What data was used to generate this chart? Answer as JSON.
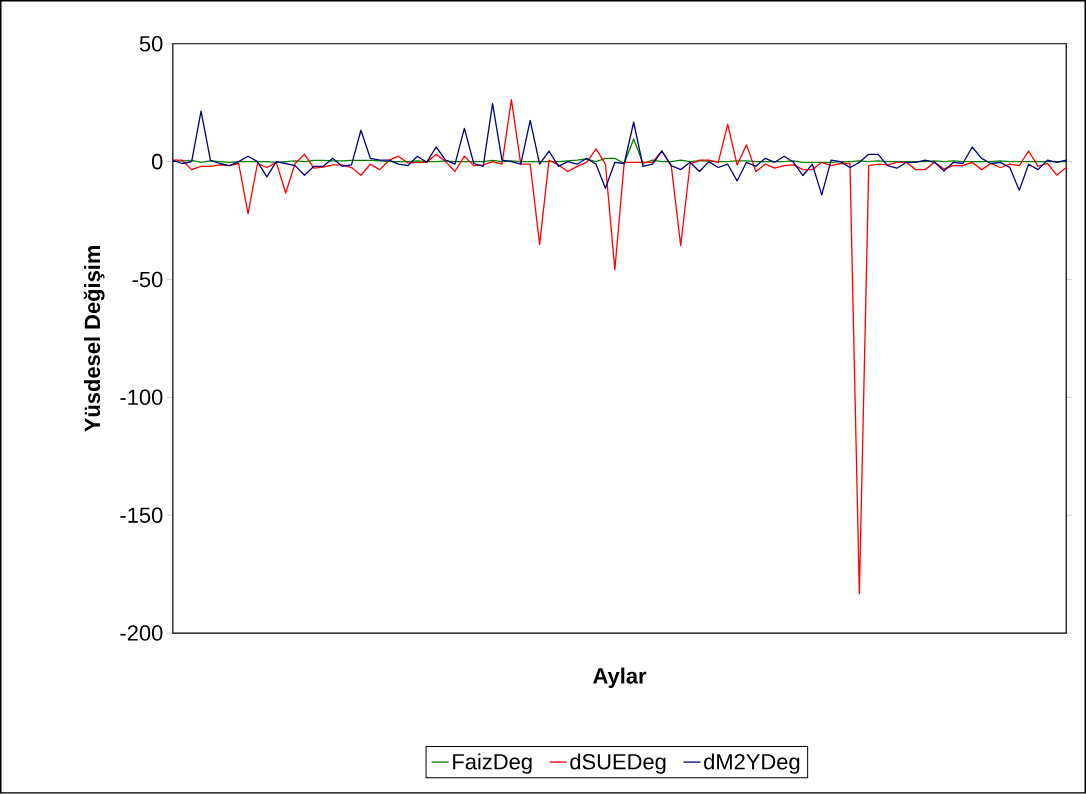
{
  "chart_data": {
    "type": "line",
    "xlabel": "Aylar",
    "ylabel": "Yüsdesel Değişim",
    "categories": [
      null,
      null,
      null,
      null,
      null,
      null,
      null,
      null,
      null,
      null,
      null,
      null,
      null,
      null,
      null,
      null,
      null,
      null,
      null,
      null,
      null,
      null,
      null,
      null,
      null,
      null,
      null,
      null,
      null,
      null,
      null,
      null,
      null,
      null,
      null,
      null,
      null,
      null,
      null,
      null,
      null,
      null,
      null,
      null,
      null,
      null,
      null,
      null,
      null,
      null,
      null,
      null,
      null,
      null,
      null,
      null,
      null,
      null,
      null,
      null,
      null,
      null,
      null,
      null,
      null,
      null,
      null,
      null,
      null,
      null,
      null,
      null,
      null,
      null,
      null,
      null,
      null,
      null,
      null,
      null,
      null,
      null,
      null,
      null,
      null,
      null,
      null,
      null,
      null,
      null,
      null,
      null,
      null,
      null,
      null,
      null
    ],
    "series": [
      {
        "name": "FaizDeg",
        "color": "#008000",
        "values": [
          0,
          0.3,
          0.5,
          -0.3,
          0.3,
          0,
          -0.3,
          0,
          0,
          0,
          0,
          -0.3,
          0,
          0.3,
          0,
          0.5,
          0.5,
          0.3,
          0.3,
          0.5,
          0.5,
          0.5,
          0.3,
          0,
          0,
          0,
          0.3,
          0,
          0,
          0.3,
          0,
          0,
          0,
          0,
          0.5,
          0,
          0.3,
          0,
          0,
          0,
          0,
          0,
          0.3,
          0.6,
          1.1,
          0,
          1.4,
          1.4,
          -0.8,
          9.6,
          -0.8,
          0.6,
          0,
          0,
          0.6,
          0,
          0.3,
          0.3,
          0,
          0,
          0.3,
          0.3,
          0,
          0,
          0,
          0,
          0.3,
          -0.3,
          -0.3,
          -0.3,
          -0.3,
          0,
          0,
          0.3,
          0,
          0.3,
          0,
          0,
          0,
          0,
          0,
          0.3,
          0,
          0.3,
          0,
          0,
          0,
          0,
          0.3,
          0,
          0,
          0,
          0,
          0,
          0,
          0
        ]
      },
      {
        "name": "dSUEDeg",
        "color": "#ff0000",
        "values": [
          0.6,
          0.6,
          -3.4,
          -2,
          -2,
          -1.4,
          -1.7,
          -0.8,
          -22.1,
          -0.8,
          -2.5,
          -0.3,
          -13.3,
          -0.8,
          3.1,
          -2.8,
          -2.3,
          -1.4,
          -1.4,
          -2.5,
          -5.8,
          -1.1,
          -3.4,
          0.6,
          2.3,
          -0.6,
          -0.3,
          -0.3,
          3.1,
          0,
          -4.2,
          2.3,
          -1.7,
          -1.4,
          0,
          -1.1,
          26.3,
          -1.1,
          -1.1,
          -35.1,
          0.6,
          -1.4,
          -4.2,
          -2,
          -0.3,
          5.4,
          -1.1,
          -45.9,
          -0.3,
          -0.3,
          -0.3,
          -0.3,
          4.5,
          -1.7,
          -35.6,
          -1.1,
          0.6,
          0.6,
          -0.3,
          15.8,
          -1.4,
          7.1,
          -4.2,
          -1.1,
          -2.8,
          -1.7,
          -1.4,
          -3.4,
          -3.4,
          -0.3,
          -1.7,
          -0.8,
          -0.8,
          -183.4,
          -1.7,
          -1.1,
          -1.4,
          -0.3,
          -0.3,
          -3.4,
          -3.4,
          -0.3,
          -3.1,
          -1.7,
          -1.7,
          -0.3,
          -3.4,
          -0.8,
          -2.5,
          -1.1,
          -1.7,
          4.5,
          -2,
          -0.8,
          -5.7,
          -2.5
        ]
      },
      {
        "name": "dM2YDeg",
        "color": "#000080",
        "values": [
          0.5,
          -0.8,
          0,
          21.4,
          0.5,
          -0.8,
          -1.7,
          0,
          2.3,
          0,
          -6.5,
          0,
          -0.8,
          -1.7,
          -5.8,
          -2,
          -2,
          1.4,
          -2,
          -1.4,
          13.3,
          1.4,
          0.6,
          0.6,
          -1.1,
          -1.7,
          2.3,
          -0.3,
          6.2,
          0.6,
          -1.1,
          14.1,
          -0.8,
          -2,
          24.6,
          0.6,
          0,
          -1.1,
          17.5,
          -1.1,
          4.5,
          -2,
          0,
          -1.1,
          1.4,
          -1.1,
          -11.3,
          -0.3,
          -0.8,
          16.7,
          -2,
          -1.1,
          4.5,
          -1.7,
          -3.4,
          -0.3,
          -4.2,
          0,
          -2.5,
          -1.1,
          -8.2,
          -0.3,
          -2,
          1.4,
          -0.3,
          2.3,
          -0.3,
          -5.9,
          -1.1,
          -14.1,
          0.6,
          0,
          -2.5,
          -0.3,
          3.1,
          3.1,
          -1.7,
          -2.8,
          -0.3,
          -0.3,
          0.6,
          -0.3,
          -4,
          -0.3,
          -0.8,
          6.2,
          1.4,
          -0.8,
          -0.3,
          -2.5,
          -12.2,
          -1.1,
          -3.4,
          0.6,
          -0.3,
          0.6
        ]
      }
    ],
    "ylim": [
      -200,
      50
    ],
    "yticks": [
      -200,
      -150,
      -100,
      -50,
      0,
      50
    ],
    "grid": false,
    "legend": "bottom"
  }
}
